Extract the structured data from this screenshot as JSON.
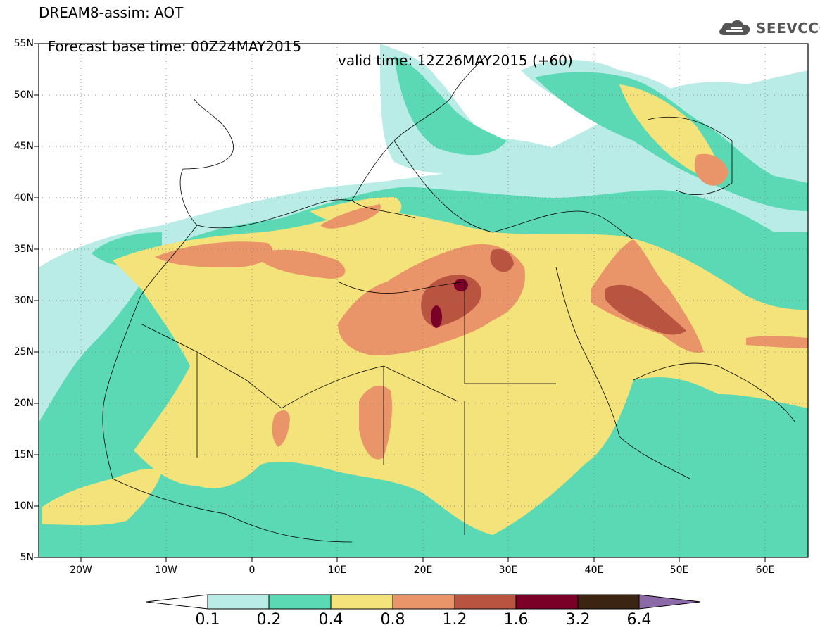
{
  "header": {
    "title_line1": "DREAM8-assim: AOT",
    "title_line2_left": "Forecast base time: 00Z24MAY2015",
    "title_line2_right": "valid time: 12Z26MAY2015 (+60)",
    "logo_text": "SEEVCCC",
    "logo_icon": "cloud-logo-icon"
  },
  "map": {
    "lat_labels": [
      "55N",
      "50N",
      "45N",
      "40N",
      "35N",
      "30N",
      "25N",
      "20N",
      "15N",
      "10N",
      "5N"
    ],
    "lon_labels": [
      "20W",
      "10W",
      "0",
      "10E",
      "20E",
      "30E",
      "40E",
      "50E",
      "60E"
    ],
    "lon_range": [
      -25,
      65
    ],
    "lat_range": [
      5,
      55
    ]
  },
  "colorbar": {
    "labels": [
      "0.1",
      "0.2",
      "0.4",
      "0.8",
      "1.2",
      "1.6",
      "3.2",
      "6.4"
    ],
    "colors": [
      "#ffffff",
      "#b9ece6",
      "#5ad9b4",
      "#f4e27a",
      "#e99469",
      "#b95440",
      "#7b0028",
      "#3c2412",
      "#8c6aa8"
    ]
  },
  "legend_colors": {
    "c01": "#b9ece6",
    "c02": "#5ad9b4",
    "c04": "#f4e27a",
    "c08": "#e99469",
    "c12": "#b95440",
    "c16": "#7b0028"
  }
}
